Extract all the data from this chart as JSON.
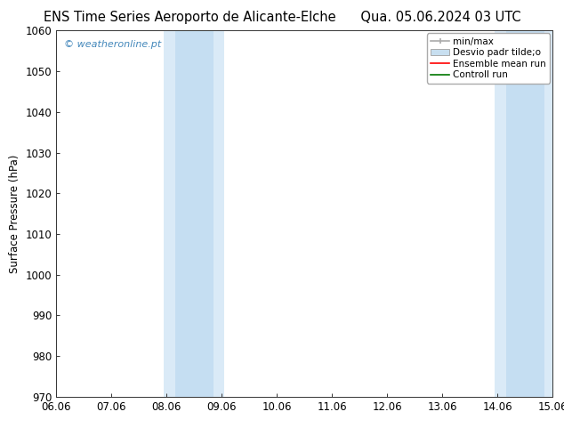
{
  "title_left": "ENS Time Series Aeroporto de Alicante-Elche",
  "title_right": "Qua. 05.06.2024 03 UTC",
  "ylabel": "Surface Pressure (hPa)",
  "ylim": [
    970,
    1060
  ],
  "yticks": [
    970,
    980,
    990,
    1000,
    1010,
    1020,
    1030,
    1040,
    1050,
    1060
  ],
  "xtick_labels": [
    "06.06",
    "07.06",
    "08.06",
    "09.06",
    "10.06",
    "11.06",
    "12.06",
    "13.06",
    "14.06",
    "15.06"
  ],
  "xmin": 0,
  "xmax": 9,
  "shaded_outer": [
    {
      "xstart": 1.95,
      "xend": 3.05,
      "color": "#daeaf7"
    },
    {
      "xstart": 7.95,
      "xend": 9.05,
      "color": "#daeaf7"
    }
  ],
  "shaded_inner": [
    {
      "xstart": 2.15,
      "xend": 2.85,
      "color": "#c5def2"
    },
    {
      "xstart": 8.15,
      "xend": 8.85,
      "color": "#c5def2"
    }
  ],
  "copyright_text": "© weatheronline.pt",
  "copyright_color": "#4488bb",
  "legend_minmax_color": "#aaaaaa",
  "legend_std_color": "#c8dff0",
  "legend_std_edge": "#aaaaaa",
  "legend_mean_color": "#ff0000",
  "legend_ctrl_color": "#007700",
  "background_color": "#ffffff",
  "plot_bg": "#ffffff",
  "title_fontsize": 10.5,
  "tick_fontsize": 8.5,
  "ylabel_fontsize": 8.5,
  "copyright_fontsize": 8.0,
  "legend_fontsize": 7.5
}
